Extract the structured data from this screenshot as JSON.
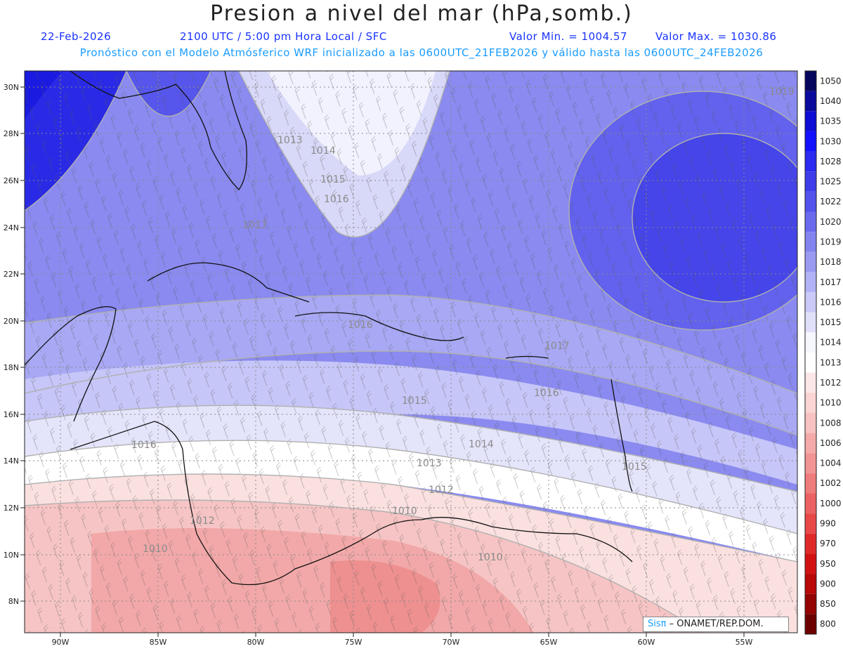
{
  "header": {
    "title": "Presion a nivel del mar (hPa,somb.)",
    "date": "22-Feb-2026",
    "time": "2100 UTC / 5:00 pm Hora Local / SFC",
    "min_value": "Valor Min. = 1004.57",
    "max_value": "Valor Max. = 1030.86",
    "forecast_note": "Pronóstico con el Modelo Atmósferico WRF inicializado a las 0600UTC_21FEB2026 y válido hasta las  0600UTC_24FEB2026"
  },
  "axes": {
    "lat_labels": [
      "30N",
      "28N",
      "26N",
      "24N",
      "22N",
      "20N",
      "18N",
      "16N",
      "14N",
      "12N",
      "10N",
      "8N"
    ],
    "lon_labels": [
      "90W",
      "85W",
      "80W",
      "75W",
      "70W",
      "65W",
      "60W",
      "55W"
    ]
  },
  "colorbar": {
    "levels": [
      "1050",
      "1040",
      "1035",
      "1030",
      "1028",
      "1025",
      "1022",
      "1020",
      "1019",
      "1018",
      "1017",
      "1016",
      "1015",
      "1014",
      "1013",
      "1012",
      "1010",
      "1008",
      "1006",
      "1004",
      "1002",
      "1000",
      "990",
      "970",
      "950",
      "900",
      "850",
      "800"
    ],
    "colors": [
      "#06065e",
      "#0a0a9c",
      "#0d0dd6",
      "#1212ff",
      "#2a2af0",
      "#3d3dea",
      "#5252ec",
      "#6a6aee",
      "#8484f0",
      "#9a9af2",
      "#b2b2f6",
      "#cacaf8",
      "#e0e0fa",
      "#f6f6fe",
      "#ffffff",
      "#fde6e6",
      "#fbd4d4",
      "#f8c2c2",
      "#f5aaaa",
      "#f29494",
      "#ef7c7c",
      "#ec6262",
      "#e84848",
      "#e02a2a",
      "#d21212",
      "#b80808",
      "#940404",
      "#6e0202"
    ]
  },
  "isobar_labels": [
    "1013",
    "1014",
    "1015",
    "1016",
    "1017",
    "1016",
    "1017",
    "1016",
    "1015",
    "1014",
    "1013",
    "1012",
    "1010",
    "1012",
    "1010",
    "1016",
    "1015",
    "1010",
    "1019"
  ],
  "badge": {
    "brand": "Sisπ",
    "org": " – ONAMET/REP.DOM."
  },
  "colors": {
    "title": "#222222",
    "subtitle": "#1a33ff",
    "note": "#1a9cff"
  }
}
